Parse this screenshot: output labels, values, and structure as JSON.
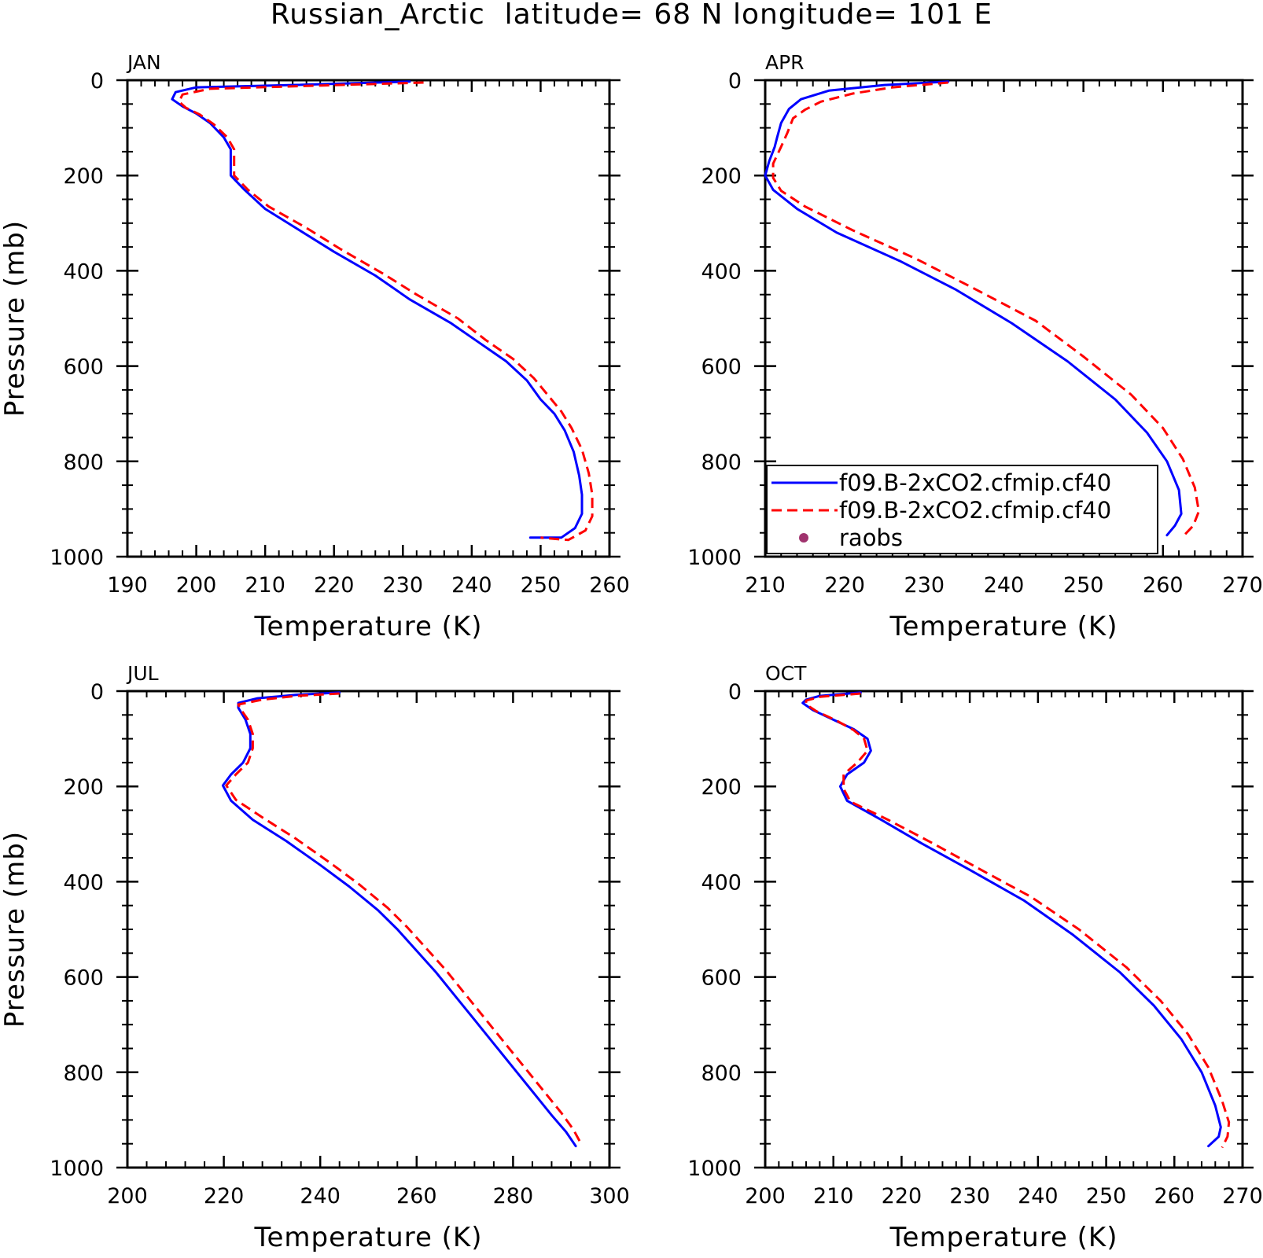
{
  "figure": {
    "title": "Russian_Arctic  latitude= 68 N longitude= 101 E"
  },
  "legend": {
    "entries": [
      {
        "label": "f09.B-2xCO2.cfmip.cf40",
        "color": "#0000ff",
        "style": "solid"
      },
      {
        "label": "f09.B-2xCO2.cfmip.cf40",
        "color": "#ff0000",
        "style": "dashed"
      },
      {
        "label": "raobs",
        "color": "#a0336e",
        "style": "marker"
      }
    ]
  },
  "chart_data": [
    {
      "type": "line",
      "panel_label": "JAN",
      "xlabel": "Temperature (K)",
      "ylabel": "Pressure (mb)",
      "xlim": [
        190,
        260
      ],
      "xticks": [
        190,
        200,
        210,
        220,
        230,
        240,
        250,
        260
      ],
      "ylim": [
        0,
        1000
      ],
      "yticks": [
        0,
        200,
        400,
        600,
        800,
        1000
      ],
      "y_inverted": true,
      "series": [
        {
          "color": "#0000ff",
          "style": "solid",
          "points": [
            [
              231,
              3
            ],
            [
              214,
              10
            ],
            [
              200,
              15
            ],
            [
              197,
              25
            ],
            [
              196.5,
              40
            ],
            [
              198,
              55
            ],
            [
              200,
              70
            ],
            [
              202,
              90
            ],
            [
              204,
              120
            ],
            [
              205,
              145
            ],
            [
              205,
              200
            ],
            [
              207,
              230
            ],
            [
              210,
              270
            ],
            [
              215,
              315
            ],
            [
              220,
              360
            ],
            [
              226,
              410
            ],
            [
              231,
              460
            ],
            [
              237,
              510
            ],
            [
              241,
              550
            ],
            [
              245,
              590
            ],
            [
              248,
              630
            ],
            [
              250,
              670
            ],
            [
              252,
              700
            ],
            [
              253.5,
              735
            ],
            [
              254.8,
              780
            ],
            [
              255.6,
              830
            ],
            [
              256,
              870
            ],
            [
              256,
              910
            ],
            [
              255,
              940
            ],
            [
              253,
              960
            ],
            [
              248.5,
              960
            ]
          ]
        },
        {
          "color": "#ff0000",
          "style": "dashed",
          "points": [
            [
              233,
              5
            ],
            [
              216,
              12
            ],
            [
              202,
              18
            ],
            [
              198,
              30
            ],
            [
              197.5,
              45
            ],
            [
              198.5,
              58
            ],
            [
              200.5,
              72
            ],
            [
              202.5,
              92
            ],
            [
              204.5,
              120
            ],
            [
              205.5,
              145
            ],
            [
              205.5,
              200
            ],
            [
              207.5,
              230
            ],
            [
              210.5,
              265
            ],
            [
              216,
              310
            ],
            [
              221,
              355
            ],
            [
              227,
              405
            ],
            [
              232,
              450
            ],
            [
              238,
              500
            ],
            [
              242,
              545
            ],
            [
              246,
              585
            ],
            [
              249,
              625
            ],
            [
              251,
              660
            ],
            [
              253,
              695
            ],
            [
              254.5,
              730
            ],
            [
              256,
              775
            ],
            [
              257,
              825
            ],
            [
              257.5,
              870
            ],
            [
              257.5,
              915
            ],
            [
              256.5,
              945
            ],
            [
              254,
              965
            ],
            [
              250,
              960
            ]
          ]
        }
      ]
    },
    {
      "type": "line",
      "panel_label": "APR",
      "xlabel": "Temperature (K)",
      "ylabel": "",
      "xlim": [
        210,
        270
      ],
      "xticks": [
        210,
        220,
        230,
        240,
        250,
        260,
        270
      ],
      "ylim": [
        0,
        1000
      ],
      "yticks": [
        0,
        200,
        400,
        600,
        800,
        1000
      ],
      "y_inverted": true,
      "series": [
        {
          "color": "#0000ff",
          "style": "solid",
          "points": [
            [
              233,
              3
            ],
            [
              225,
              10
            ],
            [
              218,
              22
            ],
            [
              214.5,
              40
            ],
            [
              213,
              60
            ],
            [
              212,
              90
            ],
            [
              211.5,
              120
            ],
            [
              211.2,
              140
            ],
            [
              210.5,
              170
            ],
            [
              210,
              200
            ],
            [
              211,
              230
            ],
            [
              214,
              270
            ],
            [
              219,
              320
            ],
            [
              227,
              380
            ],
            [
              234,
              440
            ],
            [
              241,
              510
            ],
            [
              248,
              590
            ],
            [
              254,
              670
            ],
            [
              258,
              740
            ],
            [
              260.5,
              800
            ],
            [
              262,
              860
            ],
            [
              262.3,
              910
            ],
            [
              261.5,
              935
            ],
            [
              260.5,
              955
            ]
          ]
        },
        {
          "color": "#ff0000",
          "style": "dashed",
          "points": [
            [
              233,
              5
            ],
            [
              226,
              15
            ],
            [
              221,
              28
            ],
            [
              217,
              45
            ],
            [
              215,
              62
            ],
            [
              213.5,
              80
            ],
            [
              212.8,
              110
            ],
            [
              212,
              140
            ],
            [
              211,
              175
            ],
            [
              211,
              205
            ],
            [
              212,
              232
            ],
            [
              215,
              265
            ],
            [
              221,
              315
            ],
            [
              229,
              375
            ],
            [
              236,
              435
            ],
            [
              244,
              505
            ],
            [
              250,
              580
            ],
            [
              256,
              660
            ],
            [
              260,
              730
            ],
            [
              262.5,
              795
            ],
            [
              264,
              855
            ],
            [
              264.5,
              905
            ],
            [
              263.8,
              935
            ],
            [
              262.5,
              958
            ]
          ]
        }
      ]
    },
    {
      "type": "line",
      "panel_label": "JUL",
      "xlabel": "Temperature (K)",
      "ylabel": "Pressure (mb)",
      "xlim": [
        200,
        300
      ],
      "xticks": [
        200,
        220,
        240,
        260,
        280,
        300
      ],
      "ylim": [
        0,
        1000
      ],
      "yticks": [
        0,
        200,
        400,
        600,
        800,
        1000
      ],
      "y_inverted": true,
      "series": [
        {
          "color": "#0000ff",
          "style": "solid",
          "points": [
            [
              244,
              3
            ],
            [
              235,
              8
            ],
            [
              227,
              15
            ],
            [
              223,
              25
            ],
            [
              223,
              35
            ],
            [
              224.5,
              60
            ],
            [
              225.5,
              90
            ],
            [
              225.5,
              120
            ],
            [
              224,
              150
            ],
            [
              221.5,
              175
            ],
            [
              219.8,
              198
            ],
            [
              221.5,
              230
            ],
            [
              226,
              270
            ],
            [
              233,
              315
            ],
            [
              240,
              365
            ],
            [
              246,
              410
            ],
            [
              252,
              460
            ],
            [
              256,
              500
            ],
            [
              260,
              545
            ],
            [
              264,
              590
            ],
            [
              268,
              640
            ],
            [
              272,
              690
            ],
            [
              276,
              740
            ],
            [
              280,
              790
            ],
            [
              284,
              840
            ],
            [
              288,
              890
            ],
            [
              291,
              925
            ],
            [
              293,
              955
            ]
          ]
        },
        {
          "color": "#ff0000",
          "style": "dashed",
          "points": [
            [
              244,
              5
            ],
            [
              235,
              10
            ],
            [
              228,
              18
            ],
            [
              223,
              28
            ],
            [
              223.5,
              38
            ],
            [
              225,
              60
            ],
            [
              226,
              90
            ],
            [
              226,
              120
            ],
            [
              225,
              150
            ],
            [
              222.5,
              175
            ],
            [
              220.5,
              198
            ],
            [
              222.5,
              228
            ],
            [
              228,
              265
            ],
            [
              235,
              310
            ],
            [
              242,
              360
            ],
            [
              248,
              405
            ],
            [
              254,
              455
            ],
            [
              258,
              495
            ],
            [
              262,
              540
            ],
            [
              266,
              585
            ],
            [
              270,
              635
            ],
            [
              274,
              685
            ],
            [
              278,
              735
            ],
            [
              282,
              785
            ],
            [
              286,
              835
            ],
            [
              290,
              885
            ],
            [
              292.5,
              920
            ],
            [
              294,
              948
            ]
          ]
        }
      ]
    },
    {
      "type": "line",
      "panel_label": "OCT",
      "xlabel": "Temperature (K)",
      "ylabel": "",
      "xlim": [
        200,
        270
      ],
      "xticks": [
        200,
        210,
        220,
        230,
        240,
        250,
        260,
        270
      ],
      "ylim": [
        0,
        1000
      ],
      "yticks": [
        0,
        200,
        400,
        600,
        800,
        1000
      ],
      "y_inverted": true,
      "series": [
        {
          "color": "#0000ff",
          "style": "solid",
          "points": [
            [
              214,
              3
            ],
            [
              208,
              10
            ],
            [
              206,
              18
            ],
            [
              205.5,
              25
            ],
            [
              207,
              40
            ],
            [
              210,
              60
            ],
            [
              213,
              80
            ],
            [
              215,
              100
            ],
            [
              215.5,
              125
            ],
            [
              214.5,
              150
            ],
            [
              212,
              175
            ],
            [
              211,
              200
            ],
            [
              212,
              230
            ],
            [
              217,
              270
            ],
            [
              223,
              320
            ],
            [
              230,
              375
            ],
            [
              238,
              440
            ],
            [
              245,
              510
            ],
            [
              252,
              590
            ],
            [
              257,
              660
            ],
            [
              261,
              730
            ],
            [
              264,
              800
            ],
            [
              266,
              870
            ],
            [
              266.8,
              915
            ],
            [
              266.5,
              935
            ],
            [
              265,
              955
            ]
          ]
        },
        {
          "color": "#ff0000",
          "style": "dashed",
          "points": [
            [
              214,
              5
            ],
            [
              208,
              12
            ],
            [
              206,
              20
            ],
            [
              206,
              28
            ],
            [
              207.5,
              42
            ],
            [
              210.5,
              62
            ],
            [
              213,
              82
            ],
            [
              214.5,
              100
            ],
            [
              215,
              125
            ],
            [
              213.5,
              150
            ],
            [
              211.5,
              175
            ],
            [
              211.5,
              205
            ],
            [
              212.5,
              232
            ],
            [
              218,
              270
            ],
            [
              224,
              315
            ],
            [
              231,
              370
            ],
            [
              239,
              432
            ],
            [
              246,
              500
            ],
            [
              253,
              580
            ],
            [
              258,
              650
            ],
            [
              262,
              720
            ],
            [
              265,
              790
            ],
            [
              267,
              860
            ],
            [
              268,
              905
            ],
            [
              267.8,
              935
            ],
            [
              267,
              958
            ]
          ]
        }
      ]
    }
  ]
}
